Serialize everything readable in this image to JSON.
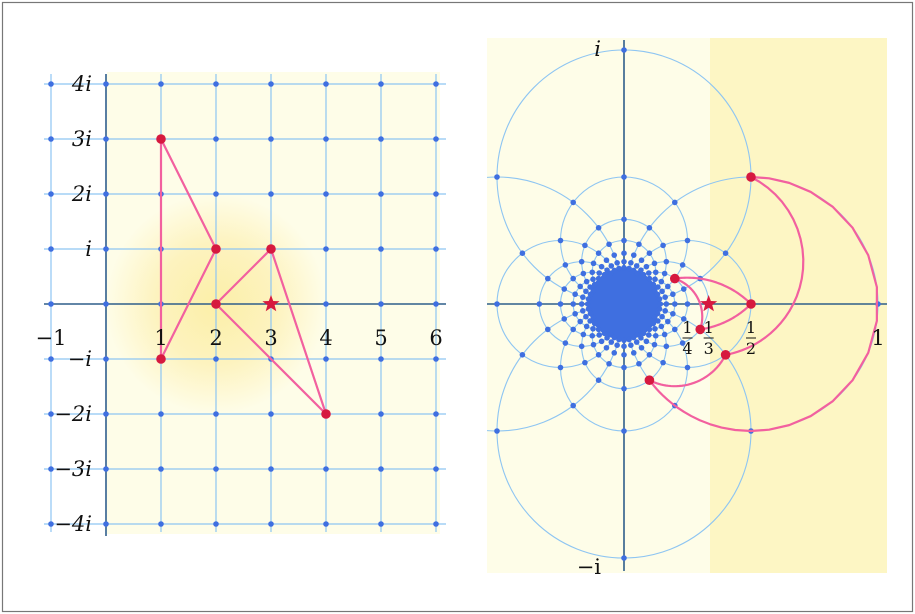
{
  "colors": {
    "grid_line": "#8ec5f2",
    "grid_point": "#3f6fe0",
    "axis": "#2f5e8a",
    "polygon": "#f2609f",
    "vertex": "#d6193f",
    "star": "#d6193f",
    "bg_light": "#fefde8",
    "bg_glow": "#fdf2b8",
    "bg_band": "#fdf6c4"
  },
  "left_panel": {
    "real_ticks": [
      "−1",
      "1",
      "2",
      "3",
      "4",
      "5",
      "6"
    ],
    "imag_ticks": [
      "4i",
      "3i",
      "2i",
      "i",
      "−i",
      "−2i",
      "−3i",
      "−4i"
    ],
    "grid": {
      "re_min": -1,
      "re_max": 6,
      "im_min": -4,
      "im_max": 4
    },
    "polygon_A": [
      [
        1,
        3
      ],
      [
        2,
        1
      ],
      [
        1,
        -1
      ]
    ],
    "polygon_B": [
      [
        2,
        0
      ],
      [
        3,
        1
      ],
      [
        4,
        -2
      ]
    ],
    "vertices": [
      [
        1,
        3
      ],
      [
        2,
        1
      ],
      [
        1,
        -1
      ],
      [
        2,
        0
      ],
      [
        3,
        1
      ],
      [
        4,
        -2
      ]
    ],
    "star": [
      3,
      0
    ]
  },
  "right_panel": {
    "mapping": "1/z",
    "real_ticks": [
      {
        "value": 0.25,
        "num": "1",
        "den": "4"
      },
      {
        "value": 0.3333,
        "num": "1",
        "den": "3"
      },
      {
        "value": 0.5,
        "num": "1",
        "den": "2"
      },
      {
        "value": 1,
        "label": "1"
      }
    ],
    "imag_top": "i",
    "imag_bottom": "−i",
    "star": [
      0.3333,
      0
    ]
  }
}
